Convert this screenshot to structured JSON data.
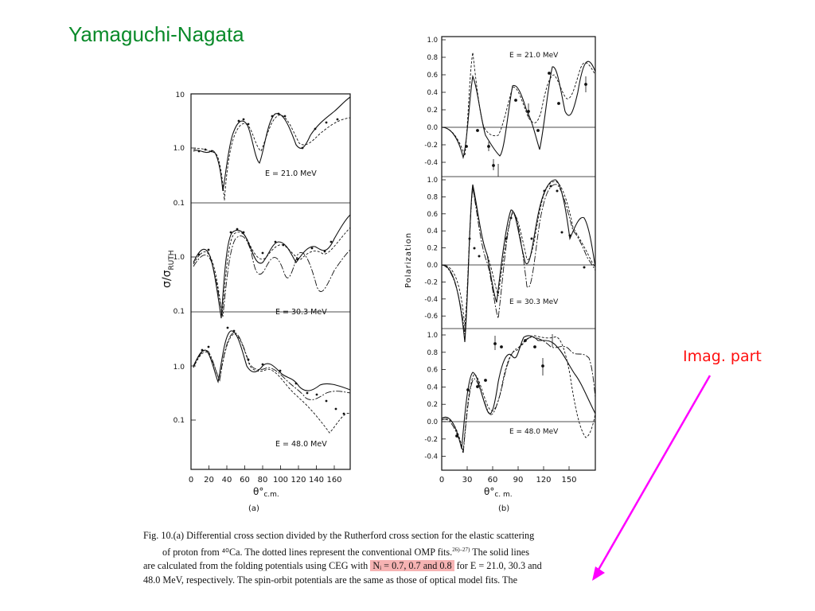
{
  "slide": {
    "title": "Yamaguchi-Nagata"
  },
  "annotation": {
    "label": "Imag. part",
    "arrow_color": "#ff00ff",
    "label_color": "#ff1010"
  },
  "panel_a": {
    "label": "(a)",
    "ylabel_prefix": "σ/σ",
    "ylabel_sub": "RUTH",
    "xlabel_base": "θ°",
    "xlabel_sub": "c.m.",
    "xticks": [
      "0",
      "20",
      "40",
      "60",
      "80",
      "100",
      "120",
      "140",
      "160"
    ],
    "subplots": [
      {
        "energy": "E = 21.0 MeV",
        "yticks": [
          "10",
          "1.0",
          "0.1"
        ]
      },
      {
        "energy": "E = 30.3 MeV",
        "yticks": [
          "1.0",
          "0.1"
        ]
      },
      {
        "energy": "E = 48.0 MeV",
        "yticks": [
          "1.0",
          "0.1"
        ]
      }
    ]
  },
  "panel_b": {
    "label": "(b)",
    "ylabel": "Polarization",
    "xlabel_base": "θ°",
    "xlabel_sub": "c. m.",
    "xticks": [
      "0",
      "30",
      "60",
      "90",
      "120",
      "150"
    ],
    "subplots": [
      {
        "energy": "E = 21.0 MeV",
        "yticks": [
          "1.0",
          "0.8",
          "0.6",
          "0.4",
          "0.2",
          "0.0",
          "-0.2",
          "-0.4"
        ]
      },
      {
        "energy": "E = 30.3 MeV",
        "yticks": [
          "1.0",
          "0.8",
          "0.6",
          "0.4",
          "0.2",
          "0.0",
          "-0.2",
          "-0.4",
          "-0.6"
        ]
      },
      {
        "energy": "E = 48.0 MeV",
        "yticks": [
          "1.0",
          "0.8",
          "0.6",
          "0.4",
          "0.2",
          "0.0",
          "-0.2",
          "-0.4"
        ]
      }
    ]
  },
  "caption": {
    "line1_a": "Fig. 10.(a)   Differential cross section divided by the Rutherford cross section for the elastic scattering",
    "line2_a": "of proton from ⁴⁰Ca.   The dotted lines represent the conventional OMP fits.",
    "line2_ref": "26)–27)",
    "line2_b": "   The solid lines",
    "line3_a": "are calculated from the folding potentials using CEG with ",
    "line3_highlight": "Nᵢ = 0.7, 0.7 and 0.8",
    "line3_b": " for E = 21.0, 30.3 and",
    "line4": "48.0 MeV, respectively.   The spin-orbit potentials are the same as those of optical model fits.   The",
    "highlight_color": "#f6b3b3"
  }
}
